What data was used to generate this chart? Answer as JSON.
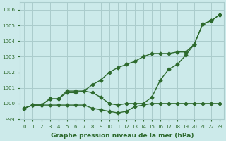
{
  "xlabel": "Graphe pression niveau de la mer (hPa)",
  "bg_color": "#cceaea",
  "grid_color": "#aacccc",
  "line_color": "#2d6a2d",
  "x": [
    0,
    1,
    2,
    3,
    4,
    5,
    6,
    7,
    8,
    9,
    10,
    11,
    12,
    13,
    14,
    15,
    16,
    17,
    18,
    19,
    20,
    21,
    22,
    23
  ],
  "line1": [
    999.7,
    999.9,
    999.9,
    999.9,
    999.9,
    999.9,
    999.9,
    999.9,
    999.7,
    999.6,
    999.5,
    999.4,
    999.5,
    999.8,
    999.9,
    1000.0,
    1000.0,
    1000.0,
    1000.0,
    1000.0,
    1000.0,
    1000.0,
    1000.0,
    1000.0
  ],
  "line2": [
    999.7,
    999.9,
    999.9,
    1000.3,
    1000.3,
    1000.7,
    1000.7,
    1000.8,
    1000.7,
    1000.4,
    1000.0,
    999.9,
    1000.0,
    1000.0,
    1000.0,
    1000.4,
    1001.5,
    1002.2,
    1002.5,
    1003.1,
    1003.8,
    1005.1,
    1005.3,
    1005.7
  ],
  "line3": [
    999.7,
    999.9,
    999.9,
    1000.3,
    1000.3,
    1000.8,
    1000.8,
    1000.8,
    1001.2,
    1001.5,
    1002.0,
    1002.3,
    1002.5,
    1002.7,
    1003.0,
    1003.2,
    1003.2,
    1003.2,
    1003.3,
    1003.3,
    1003.8,
    1005.1,
    1005.3,
    1005.7
  ],
  "ylim": [
    999.0,
    1006.5
  ],
  "yticks": [
    999,
    1000,
    1001,
    1002,
    1003,
    1004,
    1005,
    1006
  ],
  "marker": "D",
  "marker_size": 2.5,
  "line_width": 1.0
}
